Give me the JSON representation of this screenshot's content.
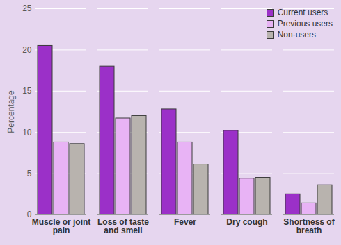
{
  "chart_data": {
    "type": "bar",
    "categories": [
      "Muscle or joint pain",
      "Loss of taste and smell",
      "Fever",
      "Dry cough",
      "Shortness of breath"
    ],
    "series": [
      {
        "name": "Current users",
        "color": "#9b30c8",
        "values": [
          20.5,
          18.0,
          12.8,
          10.2,
          2.5
        ]
      },
      {
        "name": "Previous users",
        "color": "#e8b3f5",
        "values": [
          8.8,
          11.7,
          8.8,
          4.4,
          1.4
        ]
      },
      {
        "name": "Non-users",
        "color": "#b8b3ae",
        "values": [
          8.6,
          12.0,
          6.1,
          4.5,
          3.6
        ]
      }
    ],
    "y_label": "Percentage",
    "ylim": [
      0,
      25
    ],
    "yticks": [
      0,
      5,
      10,
      15,
      20,
      25
    ],
    "grid": true,
    "legend": "top-right"
  }
}
